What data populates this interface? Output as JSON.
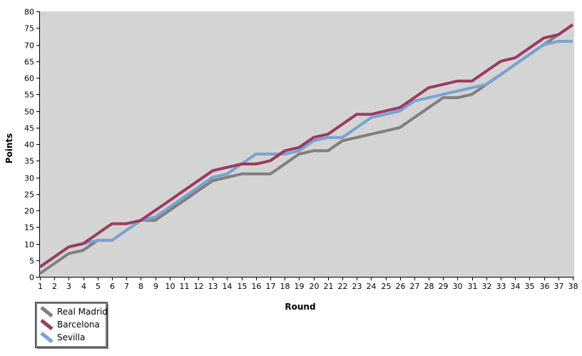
{
  "chart_data": {
    "type": "line",
    "title": "",
    "xlabel": "Round",
    "ylabel": "Points",
    "xlim": [
      1,
      38
    ],
    "ylim": [
      0,
      80
    ],
    "ytick_step": 5,
    "xtick_step": 1,
    "grid": false,
    "legend_position": "bottom-left",
    "plot_bg_color": "#d4d4d4",
    "page_bg_color": "#ffffff",
    "axis_color": "#000000",
    "rounds": [
      1,
      2,
      3,
      4,
      5,
      6,
      7,
      8,
      9,
      10,
      11,
      12,
      13,
      14,
      15,
      16,
      17,
      18,
      19,
      20,
      21,
      22,
      23,
      24,
      25,
      26,
      27,
      28,
      29,
      30,
      31,
      32,
      33,
      34,
      35,
      36,
      37,
      38
    ],
    "series": [
      {
        "name": "Real Madrid",
        "color": "#7f7f7f",
        "values": [
          1,
          4,
          7,
          8,
          11,
          11,
          14,
          17,
          17,
          20,
          23,
          26,
          29,
          30,
          31,
          31,
          31,
          34,
          37,
          38,
          38,
          41,
          42,
          43,
          44,
          45,
          48,
          51,
          54,
          54,
          55,
          58,
          61,
          64,
          67,
          70,
          73,
          76
        ]
      },
      {
        "name": "Barcelona",
        "color": "#9a3b60",
        "values": [
          3,
          6,
          9,
          10,
          13,
          16,
          16,
          17,
          20,
          23,
          26,
          29,
          32,
          33,
          34,
          34,
          35,
          38,
          39,
          42,
          43,
          46,
          49,
          49,
          50,
          51,
          54,
          57,
          58,
          59,
          59,
          62,
          65,
          66,
          69,
          72,
          73,
          76
        ]
      },
      {
        "name": "Sevilla",
        "color": "#7aa1d2",
        "values": [
          3,
          6,
          9,
          10,
          11,
          11,
          14,
          17,
          18,
          21,
          24,
          27,
          30,
          31,
          34,
          37,
          37,
          37,
          38,
          41,
          42,
          42,
          45,
          48,
          49,
          50,
          53,
          54,
          55,
          56,
          57,
          58,
          61,
          64,
          67,
          70,
          71,
          71
        ]
      }
    ]
  }
}
